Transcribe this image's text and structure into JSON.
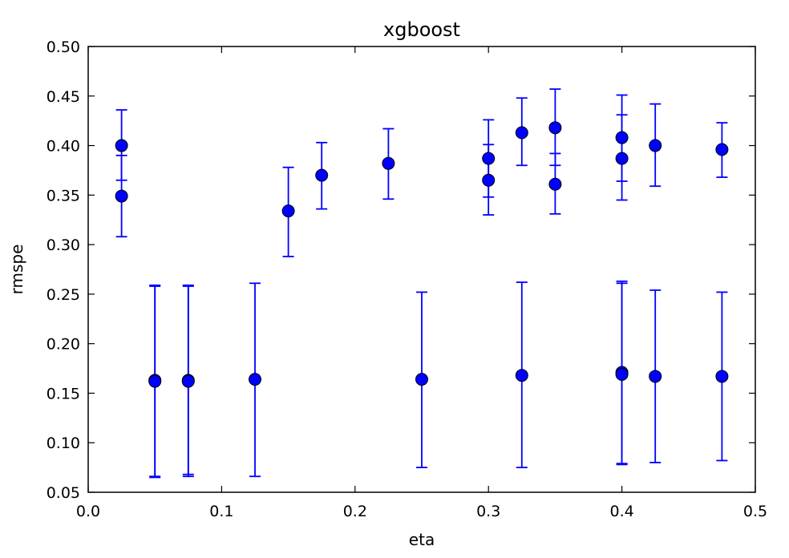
{
  "chart_data": {
    "type": "scatter",
    "title": "xgboost",
    "xlabel": "eta",
    "ylabel": "rmspe",
    "xlim": [
      0.0,
      0.5
    ],
    "ylim": [
      0.05,
      0.5
    ],
    "x_ticks": [
      "0.0",
      "0.1",
      "0.2",
      "0.3",
      "0.4",
      "0.5"
    ],
    "y_ticks": [
      "0.05",
      "0.10",
      "0.15",
      "0.20",
      "0.25",
      "0.30",
      "0.35",
      "0.40",
      "0.45",
      "0.50"
    ],
    "grid": false,
    "legend": false,
    "error_bars": true,
    "marker_color": "#0000ff",
    "errorbar_color": "#0000ff",
    "points": [
      {
        "x": 0.025,
        "y": 0.4,
        "err_low": 0.365,
        "err_high": 0.436
      },
      {
        "x": 0.025,
        "y": 0.349,
        "err_low": 0.308,
        "err_high": 0.39
      },
      {
        "x": 0.05,
        "y": 0.163,
        "err_low": 0.065,
        "err_high": 0.259
      },
      {
        "x": 0.05,
        "y": 0.162,
        "err_low": 0.066,
        "err_high": 0.258
      },
      {
        "x": 0.075,
        "y": 0.163,
        "err_low": 0.068,
        "err_high": 0.259
      },
      {
        "x": 0.075,
        "y": 0.162,
        "err_low": 0.066,
        "err_high": 0.258
      },
      {
        "x": 0.125,
        "y": 0.164,
        "err_low": 0.066,
        "err_high": 0.261
      },
      {
        "x": 0.15,
        "y": 0.334,
        "err_low": 0.288,
        "err_high": 0.378
      },
      {
        "x": 0.175,
        "y": 0.37,
        "err_low": 0.336,
        "err_high": 0.403
      },
      {
        "x": 0.225,
        "y": 0.382,
        "err_low": 0.346,
        "err_high": 0.417
      },
      {
        "x": 0.25,
        "y": 0.164,
        "err_low": 0.075,
        "err_high": 0.252
      },
      {
        "x": 0.3,
        "y": 0.387,
        "err_low": 0.348,
        "err_high": 0.426
      },
      {
        "x": 0.3,
        "y": 0.365,
        "err_low": 0.33,
        "err_high": 0.401
      },
      {
        "x": 0.325,
        "y": 0.413,
        "err_low": 0.38,
        "err_high": 0.448
      },
      {
        "x": 0.325,
        "y": 0.168,
        "err_low": 0.075,
        "err_high": 0.262
      },
      {
        "x": 0.35,
        "y": 0.418,
        "err_low": 0.38,
        "err_high": 0.457
      },
      {
        "x": 0.35,
        "y": 0.361,
        "err_low": 0.331,
        "err_high": 0.392
      },
      {
        "x": 0.4,
        "y": 0.408,
        "err_low": 0.364,
        "err_high": 0.451
      },
      {
        "x": 0.4,
        "y": 0.387,
        "err_low": 0.345,
        "err_high": 0.431
      },
      {
        "x": 0.4,
        "y": 0.171,
        "err_low": 0.079,
        "err_high": 0.263
      },
      {
        "x": 0.4,
        "y": 0.169,
        "err_low": 0.078,
        "err_high": 0.261
      },
      {
        "x": 0.425,
        "y": 0.4,
        "err_low": 0.359,
        "err_high": 0.442
      },
      {
        "x": 0.425,
        "y": 0.167,
        "err_low": 0.08,
        "err_high": 0.254
      },
      {
        "x": 0.475,
        "y": 0.396,
        "err_low": 0.368,
        "err_high": 0.423
      },
      {
        "x": 0.475,
        "y": 0.167,
        "err_low": 0.082,
        "err_high": 0.252
      }
    ]
  }
}
